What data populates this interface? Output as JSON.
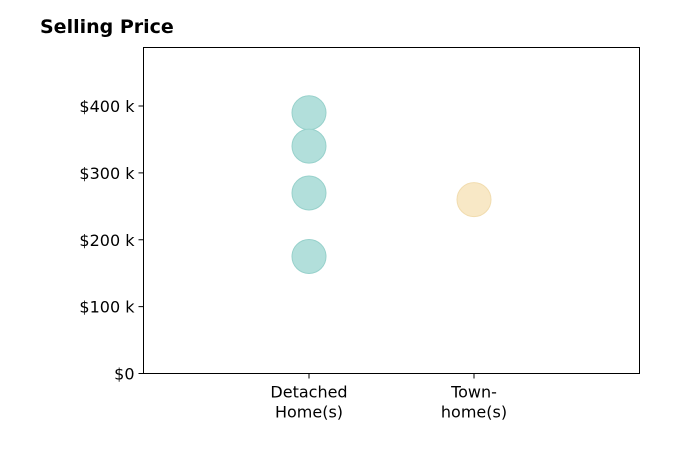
{
  "chart_data": {
    "type": "scatter",
    "title": "Selling Price",
    "xlabel": "",
    "ylabel": "",
    "categories": [
      [
        "Detached",
        "Home(s)"
      ],
      [
        "Town-",
        "home(s)"
      ]
    ],
    "ylim": [
      0,
      487500
    ],
    "yticks": [
      {
        "value": 0,
        "label": "$0"
      },
      {
        "value": 100000,
        "label": "$100 k"
      },
      {
        "value": 200000,
        "label": "$200 k"
      },
      {
        "value": 300000,
        "label": "$300 k"
      },
      {
        "value": 400000,
        "label": "$400 k"
      }
    ],
    "points": [
      {
        "category": 0,
        "y": 390000,
        "color": "#b2dfdb"
      },
      {
        "category": 0,
        "y": 340000,
        "color": "#b2dfdb"
      },
      {
        "category": 0,
        "y": 270000,
        "color": "#b2dfdb"
      },
      {
        "category": 0,
        "y": 175000,
        "color": "#b2dfdb"
      },
      {
        "category": 1,
        "y": 260000,
        "color": "#f8e8c6"
      }
    ],
    "grid": false,
    "legend": "none",
    "colors": {
      "detached_fill": "#b2dfdb",
      "detached_stroke": "#97d1cb",
      "town_fill": "#f8e8c6",
      "town_stroke": "#f1dcaf"
    }
  }
}
